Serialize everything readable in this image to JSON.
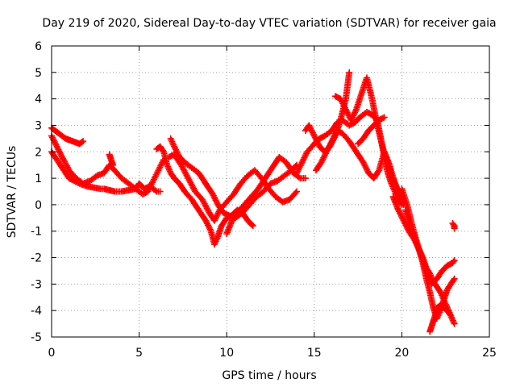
{
  "chart_data": {
    "type": "scatter",
    "title": "Day 219 of 2020, Sidereal Day-to-day VTEC variation (SDTVAR) for receiver gaia",
    "xlabel": "GPS time / hours",
    "ylabel": "SDTVAR / TECUs",
    "xlim": [
      0,
      25
    ],
    "ylim": [
      -5,
      6
    ],
    "xticks": [
      0,
      5,
      10,
      15,
      20,
      25
    ],
    "yticks": [
      -5,
      -4,
      -3,
      -2,
      -1,
      0,
      1,
      2,
      3,
      4,
      5,
      6
    ],
    "grid": true,
    "marker": "+",
    "color": "#ff0000",
    "series": [
      {
        "x": [
          0.0,
          0.2,
          0.4,
          0.6,
          0.8,
          1.0,
          1.2,
          1.4,
          1.6,
          1.8
        ],
        "y": [
          2.9,
          2.8,
          2.7,
          2.6,
          2.5,
          2.45,
          2.4,
          2.35,
          2.3,
          2.4
        ]
      },
      {
        "x": [
          0.0,
          0.2,
          0.4,
          0.7,
          1.0,
          1.3,
          1.6,
          2.0,
          2.4,
          2.8,
          3.0,
          3.3,
          3.6,
          4.0,
          4.4,
          4.8,
          5.0,
          5.3,
          5.6,
          6.0,
          6.2
        ],
        "y": [
          2.0,
          1.8,
          1.6,
          1.3,
          1.0,
          0.9,
          0.8,
          0.7,
          0.65,
          0.6,
          0.6,
          0.55,
          0.5,
          0.5,
          0.55,
          0.6,
          0.8,
          0.6,
          0.7,
          0.5,
          0.5
        ]
      },
      {
        "x": [
          0.0,
          0.3,
          0.6,
          1.0,
          1.4,
          1.8,
          2.2,
          2.6,
          3.0,
          3.3,
          3.6,
          4.0,
          4.4,
          4.8,
          5.2,
          5.5,
          5.8,
          6.1,
          6.4
        ],
        "y": [
          2.6,
          2.2,
          1.8,
          1.3,
          1.0,
          0.8,
          0.9,
          1.1,
          1.2,
          1.5,
          1.3,
          1.0,
          0.8,
          0.6,
          0.4,
          0.5,
          0.9,
          1.3,
          1.7
        ]
      },
      {
        "x": [
          3.3,
          3.4,
          3.5
        ],
        "y": [
          1.9,
          1.7,
          1.5
        ]
      },
      {
        "x": [
          6.0,
          6.2,
          6.4,
          6.6,
          6.8,
          7.0,
          7.3,
          7.6,
          8.0,
          8.4,
          8.8,
          9.1,
          9.3,
          9.5,
          9.7,
          10.0,
          10.3,
          10.6,
          10.9,
          11.2,
          11.5
        ],
        "y": [
          2.1,
          2.2,
          2.0,
          1.5,
          1.2,
          1.0,
          0.8,
          0.5,
          0.2,
          -0.2,
          -0.6,
          -1.0,
          -1.5,
          -1.2,
          -0.8,
          -0.5,
          -0.4,
          -0.2,
          -0.3,
          -0.6,
          -0.8
        ]
      },
      {
        "x": [
          6.8,
          7.0,
          7.3,
          7.6,
          8.0,
          8.4,
          8.8,
          9.2,
          9.5,
          9.8,
          10.1,
          10.5,
          10.9,
          11.3,
          11.7,
          12.1,
          12.5,
          12.9,
          13.3,
          13.7,
          14.0
        ],
        "y": [
          2.5,
          2.2,
          1.8,
          1.6,
          1.4,
          1.2,
          0.8,
          0.4,
          0.0,
          -0.3,
          -0.4,
          -0.5,
          -0.3,
          0.0,
          0.3,
          0.5,
          0.8,
          0.9,
          1.1,
          1.3,
          1.5
        ]
      },
      {
        "x": [
          6.7,
          7.0,
          7.4,
          7.8,
          8.2,
          8.6,
          9.0,
          9.3,
          9.6,
          10.0,
          10.4,
          10.8,
          11.2,
          11.6,
          12.0,
          12.4,
          12.8,
          13.2,
          13.6,
          14.0
        ],
        "y": [
          1.8,
          1.9,
          1.5,
          1.0,
          0.5,
          0.2,
          -0.3,
          -0.6,
          -0.2,
          0.1,
          0.4,
          0.8,
          1.1,
          1.3,
          1.0,
          0.6,
          0.3,
          0.1,
          0.2,
          0.5
        ]
      },
      {
        "x": [
          10.0,
          10.3,
          10.6,
          11.0,
          11.4,
          11.8,
          12.2,
          12.6,
          13.0,
          13.4,
          13.8,
          14.2,
          14.5
        ],
        "y": [
          -1.1,
          -0.6,
          -0.3,
          0.0,
          0.3,
          0.6,
          1.0,
          1.4,
          1.8,
          1.6,
          1.2,
          1.0,
          1.0
        ]
      },
      {
        "x": [
          14.0,
          14.3,
          14.6,
          15.0,
          15.3,
          15.6,
          16.0,
          16.3,
          16.6,
          17.0,
          17.3,
          17.6,
          18.0,
          18.3,
          18.6,
          18.8,
          19.0,
          19.2,
          19.4,
          19.6,
          19.8,
          20.0
        ],
        "y": [
          1.2,
          1.6,
          2.0,
          2.3,
          2.5,
          2.6,
          2.8,
          3.1,
          3.2,
          3.0,
          3.1,
          3.3,
          3.5,
          3.4,
          3.2,
          2.5,
          1.8,
          1.2,
          0.8,
          0.5,
          0.2,
          0.0
        ]
      },
      {
        "x": [
          14.5,
          14.7,
          15.0,
          15.3,
          15.6,
          15.9,
          16.2,
          16.5,
          16.8,
          17.0
        ],
        "y": [
          2.8,
          3.0,
          2.6,
          2.2,
          2.0,
          2.2,
          2.6,
          3.2,
          4.0,
          5.0
        ]
      },
      {
        "x": [
          15.1,
          15.4,
          15.7,
          16.0,
          16.3,
          16.6,
          17.0,
          17.4,
          17.8,
          18.1,
          18.4,
          18.7,
          19.0,
          19.3,
          19.6,
          20.0
        ],
        "y": [
          1.3,
          1.6,
          2.0,
          2.4,
          2.8,
          2.7,
          2.4,
          2.0,
          1.6,
          1.2,
          1.0,
          1.3,
          2.0,
          1.5,
          0.8,
          0.2
        ]
      },
      {
        "x": [
          16.2,
          16.5,
          16.8,
          17.1,
          17.4,
          17.7,
          18.0,
          18.3,
          18.6,
          18.9,
          19.2,
          19.5,
          19.8,
          20.1
        ],
        "y": [
          4.1,
          4.0,
          3.6,
          3.2,
          3.6,
          4.2,
          4.8,
          4.0,
          3.0,
          2.2,
          1.5,
          1.0,
          0.5,
          0.0
        ]
      },
      {
        "x": [
          17.5,
          17.8,
          18.1,
          18.4,
          18.7,
          19.0
        ],
        "y": [
          2.3,
          2.5,
          2.8,
          3.0,
          3.2,
          3.3
        ]
      },
      {
        "x": [
          19.5,
          19.8,
          20.1,
          20.4,
          20.7,
          21.0,
          21.2,
          21.4,
          21.6,
          21.8,
          22.0,
          22.2,
          22.4,
          22.6,
          22.8,
          23.0
        ],
        "y": [
          0.3,
          -0.2,
          -0.6,
          -1.0,
          -1.3,
          -1.7,
          -2.0,
          -2.4,
          -2.6,
          -2.9,
          -3.1,
          -3.3,
          -3.6,
          -3.9,
          -4.2,
          -4.5
        ]
      },
      {
        "x": [
          20.0,
          20.3,
          20.6,
          20.9,
          21.2,
          21.4,
          21.6,
          21.8,
          22.0,
          22.2,
          22.4,
          22.6,
          22.8,
          23.0
        ],
        "y": [
          0.6,
          0.0,
          -0.8,
          -1.5,
          -2.2,
          -2.8,
          -3.3,
          -3.9,
          -4.3,
          -4.0,
          -3.6,
          -3.2,
          -3.0,
          -2.8
        ]
      },
      {
        "x": [
          20.2,
          20.5,
          20.8,
          21.1,
          21.4,
          21.7,
          22.0,
          22.3,
          22.6,
          22.9,
          23.0
        ],
        "y": [
          -0.2,
          -0.8,
          -1.4,
          -1.9,
          -2.5,
          -3.0,
          -2.8,
          -2.5,
          -2.3,
          -2.2,
          -2.1
        ]
      },
      {
        "x": [
          21.6,
          21.7,
          21.8,
          21.9,
          22.0,
          22.2,
          22.4,
          22.6,
          22.8
        ],
        "y": [
          -4.8,
          -4.6,
          -4.4,
          -4.2,
          -3.9,
          -3.8,
          -3.9,
          -4.0,
          -4.2
        ]
      },
      {
        "x": [
          22.9,
          23.0,
          23.0
        ],
        "y": [
          -0.7,
          -0.8,
          -0.9
        ]
      }
    ]
  }
}
